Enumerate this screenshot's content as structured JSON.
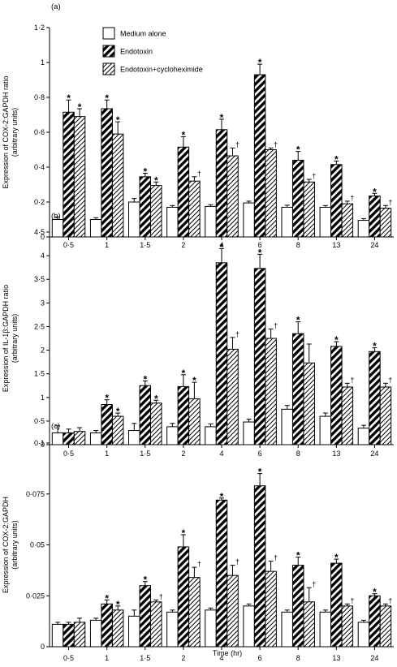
{
  "legend": [
    {
      "key": "medium",
      "label": "Medium alone",
      "pattern": "white"
    },
    {
      "key": "endotoxin",
      "label": "Endotoxin",
      "pattern": "thick-hatch"
    },
    {
      "key": "endo_chx",
      "label": "Endotoxin+cycloheximide",
      "pattern": "thin-hatch"
    }
  ],
  "x_axis_title": "Time (hr)",
  "chart_data": [
    {
      "type": "bar",
      "panel_label": "(a)",
      "ylabel_line1": "Expression of COX-2:GAPDH ratio",
      "ylabel_line2": "(arbitrary units)",
      "categories": [
        "0·5",
        "1",
        "1·5",
        "2",
        "4",
        "6",
        "8",
        "13",
        "24"
      ],
      "ylim": [
        0,
        1.2
      ],
      "yticks": [
        0,
        0.2,
        0.4,
        0.6,
        0.8,
        1.0,
        1.2
      ],
      "ytick_labels": [
        "0",
        "0·2",
        "0·4",
        "0·6",
        "0·8",
        "1",
        "1·2"
      ],
      "series": [
        {
          "name": "Medium alone",
          "values": [
            0.1,
            0.1,
            0.2,
            0.17,
            0.175,
            0.195,
            0.17,
            0.17,
            0.095
          ],
          "errors": [
            0.015,
            0.01,
            0.02,
            0.01,
            0.01,
            0.01,
            0.012,
            0.01,
            0.01
          ],
          "marks": [
            "",
            "",
            "",
            "",
            "",
            "",
            "",
            "",
            ""
          ]
        },
        {
          "name": "Endotoxin",
          "values": [
            0.715,
            0.735,
            0.345,
            0.515,
            0.615,
            0.93,
            0.44,
            0.415,
            0.235
          ],
          "errors": [
            0.07,
            0.05,
            0.02,
            0.06,
            0.06,
            0.06,
            0.05,
            0.02,
            0.015
          ],
          "marks": [
            "*",
            "*",
            "*",
            "*",
            "*",
            "*",
            "*",
            "*",
            "*"
          ]
        },
        {
          "name": "Endotoxin+cycloheximide",
          "values": [
            0.69,
            0.59,
            0.295,
            0.32,
            0.465,
            0.5,
            0.315,
            0.19,
            0.165
          ],
          "errors": [
            0.045,
            0.07,
            0.02,
            0.025,
            0.045,
            0.01,
            0.015,
            0.015,
            0.015
          ],
          "marks": [
            "*",
            "*",
            "*",
            "†",
            "†",
            "†",
            "†",
            "†",
            "†"
          ]
        }
      ]
    },
    {
      "type": "bar",
      "panel_label": "(b)",
      "ylabel_line1": "Expression of IL-1β:GAPDH ratio",
      "ylabel_line2": "(arbitrary units)",
      "categories": [
        "0·5",
        "1",
        "1·5",
        "2",
        "4",
        "6",
        "8",
        "13",
        "24"
      ],
      "ylim": [
        0,
        4.5
      ],
      "yticks": [
        0,
        0.5,
        1,
        1.5,
        2,
        2.5,
        3,
        3.5,
        4,
        4.5
      ],
      "ytick_labels": [
        "0",
        "0·5",
        "1",
        "1·5",
        "2",
        "2·5",
        "3",
        "3·5",
        "4",
        "4·5"
      ],
      "series": [
        {
          "name": "Medium alone",
          "values": [
            0.25,
            0.25,
            0.3,
            0.38,
            0.38,
            0.48,
            0.75,
            0.6,
            0.35
          ],
          "errors": [
            0.15,
            0.05,
            0.15,
            0.07,
            0.06,
            0.06,
            0.08,
            0.07,
            0.06
          ],
          "marks": [
            "",
            "",
            "",
            "",
            "",
            "",
            "",
            "",
            ""
          ]
        },
        {
          "name": "Endotoxin",
          "values": [
            0.25,
            0.85,
            1.25,
            1.23,
            3.85,
            3.73,
            2.35,
            2.08,
            1.97
          ],
          "errors": [
            0.08,
            0.1,
            0.1,
            0.25,
            0.3,
            0.3,
            0.25,
            0.1,
            0.08
          ],
          "marks": [
            "",
            "*",
            "*",
            "*",
            "*",
            "*",
            "*",
            "*",
            "*"
          ]
        },
        {
          "name": "Endotoxin+cycloheximide",
          "values": [
            0.28,
            0.6,
            0.88,
            0.97,
            2.02,
            2.25,
            1.73,
            1.22,
            1.22
          ],
          "errors": [
            0.08,
            0.07,
            0.06,
            0.35,
            0.25,
            0.2,
            0.4,
            0.08,
            0.08
          ],
          "marks": [
            "",
            "*",
            "*",
            "*",
            "†",
            "†",
            "",
            "†",
            "†"
          ]
        }
      ]
    },
    {
      "type": "bar",
      "panel_label": "(c)",
      "ylabel_line1": "Expression of COX-2:GAPDH",
      "ylabel_line2": "(arbitrary units)",
      "categories": [
        "0·5",
        "1",
        "1·5",
        "2",
        "4",
        "6",
        "8",
        "13",
        "24"
      ],
      "ylim": [
        0,
        0.1
      ],
      "yticks": [
        0,
        0.025,
        0.05,
        0.075,
        0.1
      ],
      "ytick_labels": [
        "0",
        "0·025",
        "0·05",
        "0·075",
        "0·1"
      ],
      "series": [
        {
          "name": "Medium alone",
          "values": [
            0.011,
            0.013,
            0.015,
            0.017,
            0.018,
            0.02,
            0.017,
            0.017,
            0.012
          ],
          "errors": [
            0.001,
            0.001,
            0.003,
            0.001,
            0.001,
            0.001,
            0.001,
            0.001,
            0.001
          ],
          "marks": [
            "",
            "",
            "",
            "",
            "",
            "",
            "",
            "",
            ""
          ]
        },
        {
          "name": "Endotoxin",
          "values": [
            0.011,
            0.021,
            0.03,
            0.049,
            0.072,
            0.079,
            0.04,
            0.041,
            0.025
          ],
          "errors": [
            0.001,
            0.002,
            0.002,
            0.006,
            0.001,
            0.006,
            0.004,
            0.002,
            0.001
          ],
          "marks": [
            "",
            "*",
            "*",
            "*",
            "*",
            "*",
            "*",
            "*",
            "*"
          ]
        },
        {
          "name": "Endotoxin+cycloheximide",
          "values": [
            0.012,
            0.018,
            0.022,
            0.034,
            0.035,
            0.037,
            0.022,
            0.02,
            0.02
          ],
          "errors": [
            0.002,
            0.002,
            0.001,
            0.005,
            0.005,
            0.005,
            0.007,
            0.001,
            0.001
          ],
          "marks": [
            "",
            "*",
            "†",
            "†",
            "†",
            "†",
            "†",
            "†",
            "†"
          ]
        }
      ]
    }
  ]
}
